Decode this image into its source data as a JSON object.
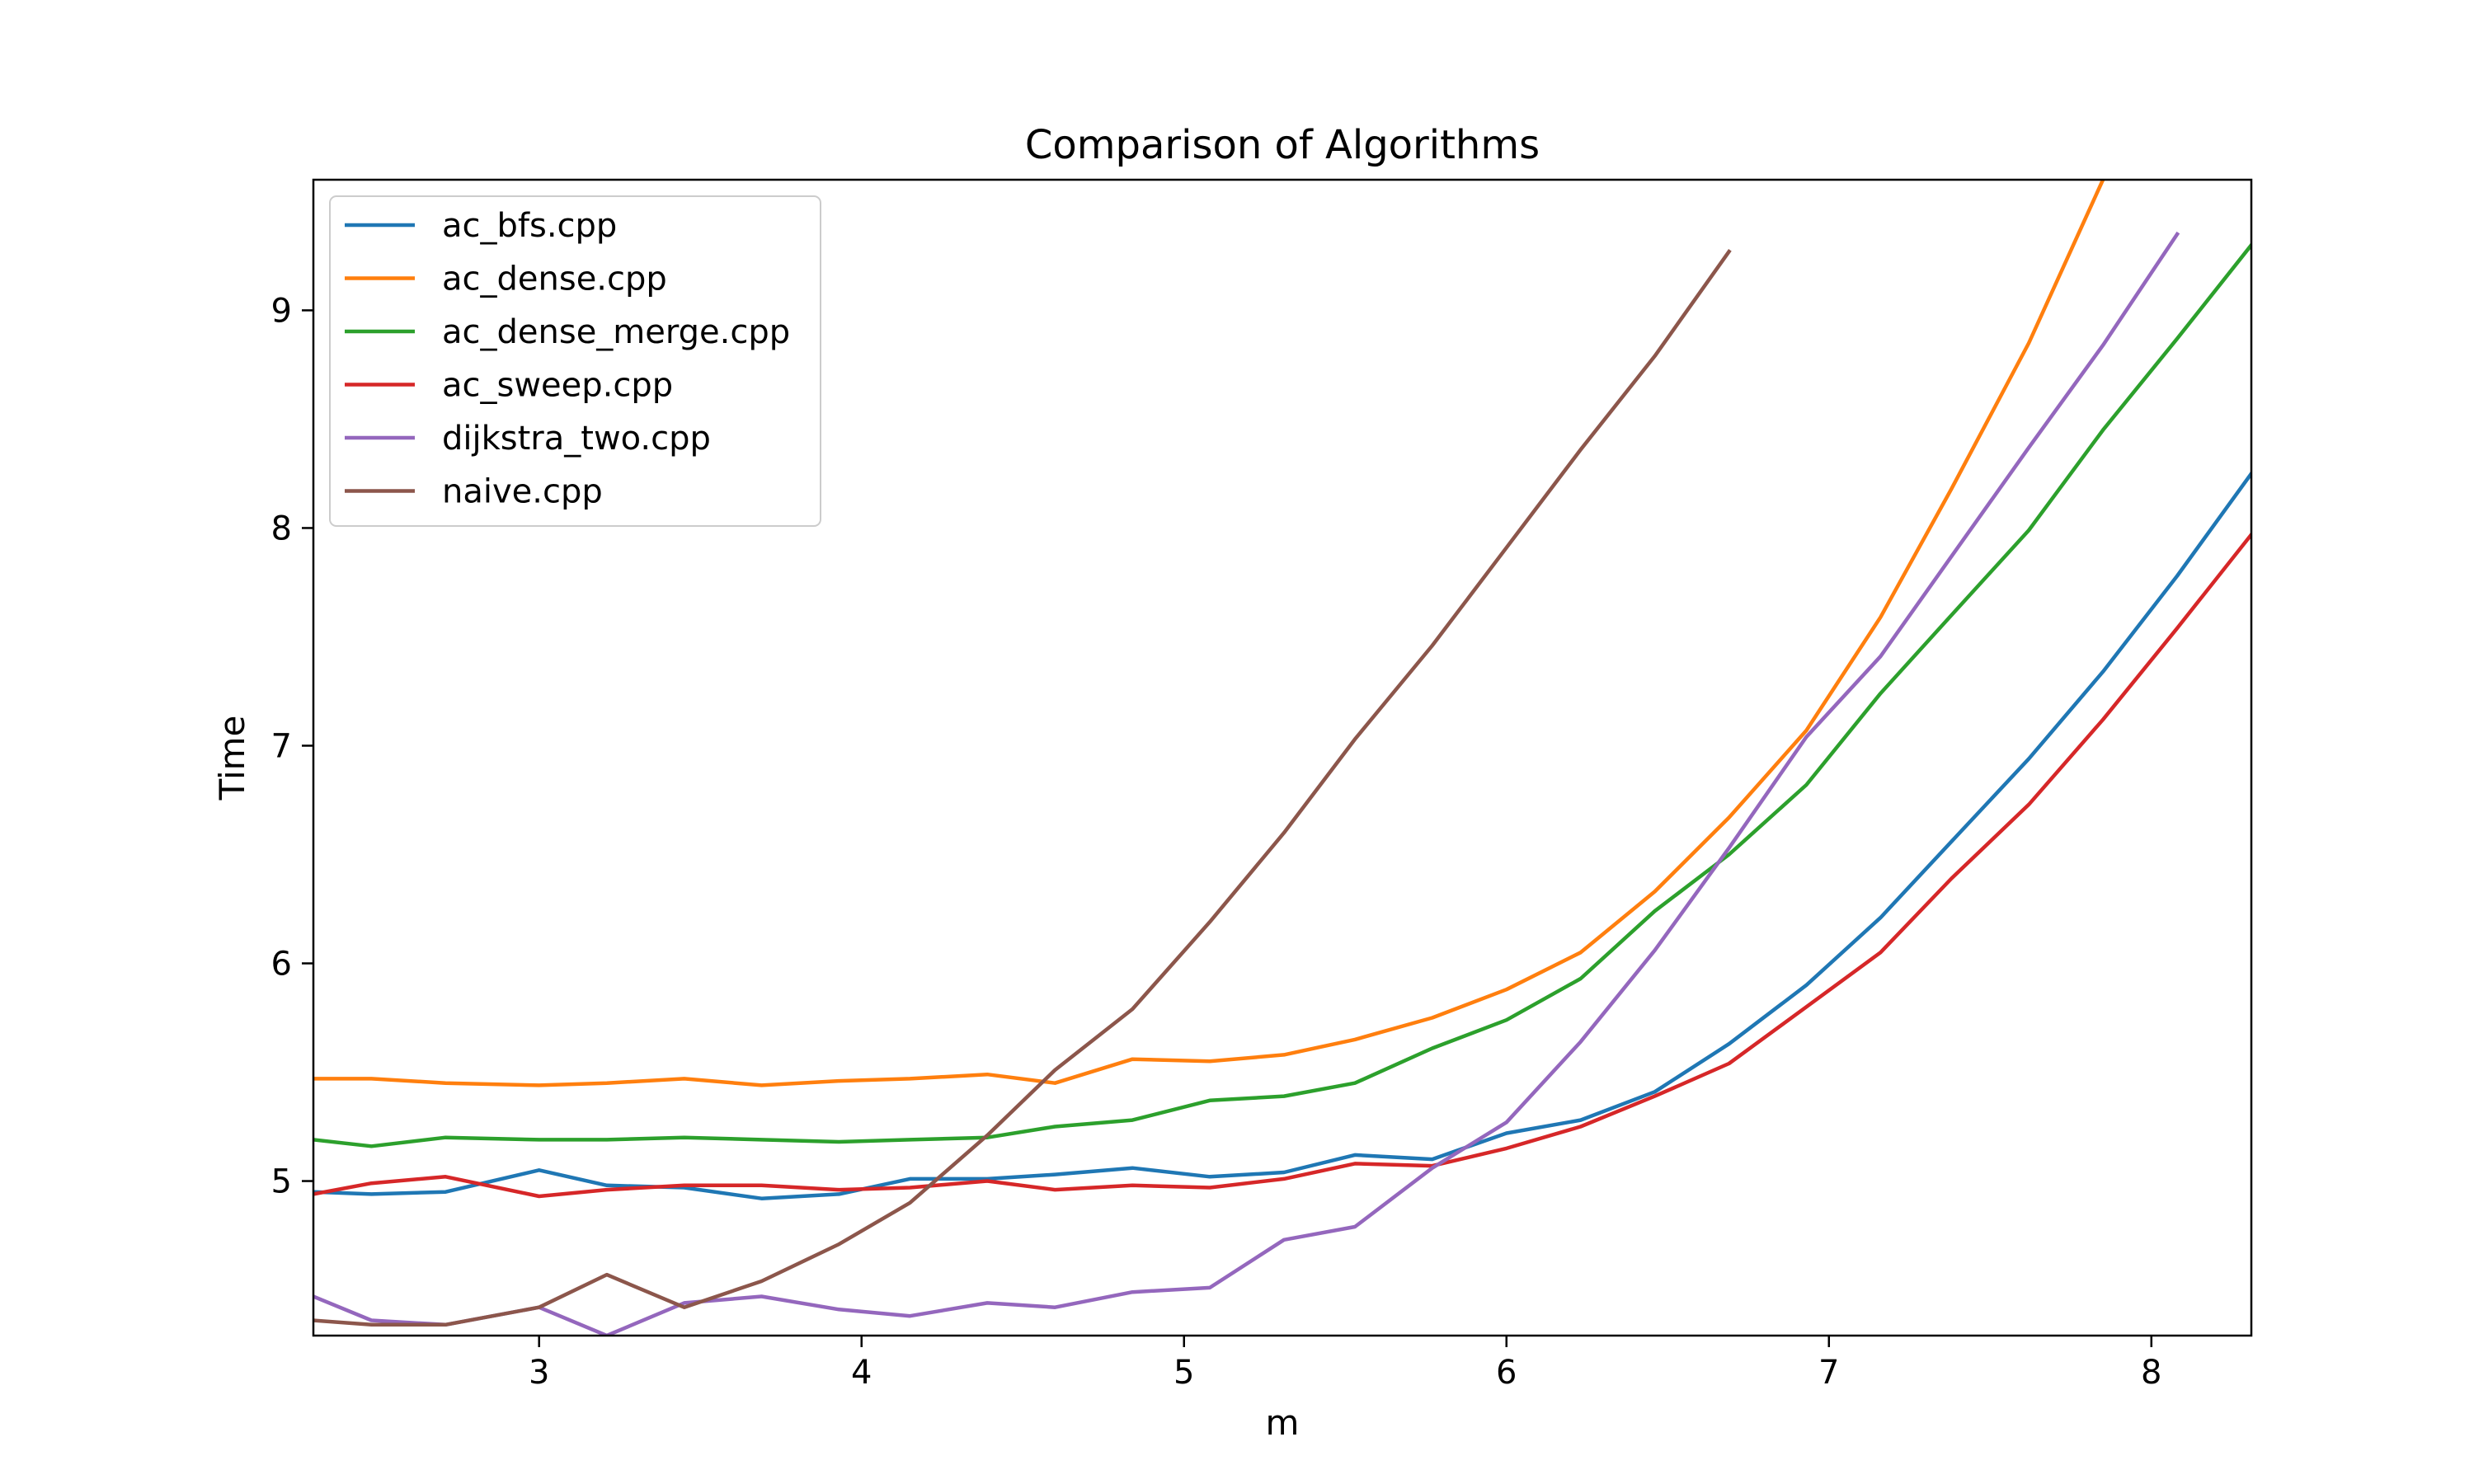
{
  "chart_data": {
    "type": "line",
    "title": "Comparison of Algorithms",
    "xlabel": "m",
    "ylabel": "Time",
    "xlim": [
      2.3,
      8.31
    ],
    "ylim": [
      4.29,
      9.6
    ],
    "xticks": [
      3,
      4,
      5,
      6,
      7,
      8
    ],
    "yticks": [
      5,
      6,
      7,
      8,
      9
    ],
    "x_tick_labels": [
      "3",
      "4",
      "5",
      "6",
      "7",
      "8"
    ],
    "y_tick_labels": [
      "5",
      "6",
      "7",
      "8",
      "9"
    ],
    "grid": false,
    "legend_position": "upper left",
    "series": [
      {
        "name": "ac_bfs.cpp",
        "color": "#1f77b4",
        "x": [
          2.3,
          2.48,
          2.71,
          3.0,
          3.21,
          3.45,
          3.69,
          3.93,
          4.15,
          4.39,
          4.6,
          4.84,
          5.08,
          5.31,
          5.53,
          5.77,
          6.0,
          6.23,
          6.46,
          6.69,
          6.93,
          7.16,
          7.38,
          7.62,
          7.85,
          8.08,
          8.31
        ],
        "y": [
          4.95,
          4.94,
          4.95,
          5.05,
          4.98,
          4.97,
          4.92,
          4.94,
          5.01,
          5.01,
          5.03,
          5.06,
          5.02,
          5.04,
          5.12,
          5.1,
          5.22,
          5.28,
          5.41,
          5.63,
          5.9,
          6.21,
          6.56,
          6.94,
          7.34,
          7.78,
          8.25
        ]
      },
      {
        "name": "ac_dense.cpp",
        "color": "#ff7f0e",
        "x": [
          2.3,
          2.48,
          2.71,
          3.0,
          3.21,
          3.45,
          3.69,
          3.93,
          4.15,
          4.39,
          4.6,
          4.84,
          5.08,
          5.31,
          5.53,
          5.77,
          6.0,
          6.23,
          6.46,
          6.69,
          6.93,
          7.16,
          7.38,
          7.62,
          7.85
        ],
        "y": [
          5.47,
          5.47,
          5.45,
          5.44,
          5.45,
          5.47,
          5.44,
          5.46,
          5.47,
          5.49,
          5.45,
          5.56,
          5.55,
          5.58,
          5.65,
          5.75,
          5.88,
          6.05,
          6.33,
          6.67,
          7.07,
          7.59,
          8.18,
          8.85,
          9.6
        ]
      },
      {
        "name": "ac_dense_merge.cpp",
        "color": "#2ca02c",
        "x": [
          2.3,
          2.48,
          2.71,
          3.0,
          3.21,
          3.45,
          3.69,
          3.93,
          4.15,
          4.39,
          4.6,
          4.84,
          5.08,
          5.31,
          5.53,
          5.77,
          6.0,
          6.23,
          6.46,
          6.69,
          6.93,
          7.16,
          7.38,
          7.62,
          7.85,
          8.08,
          8.31
        ],
        "y": [
          5.19,
          5.16,
          5.2,
          5.19,
          5.19,
          5.2,
          5.19,
          5.18,
          5.19,
          5.2,
          5.25,
          5.28,
          5.37,
          5.39,
          5.45,
          5.61,
          5.74,
          5.93,
          6.24,
          6.5,
          6.82,
          7.24,
          7.6,
          7.99,
          8.45,
          8.87,
          9.3
        ]
      },
      {
        "name": "ac_sweep.cpp",
        "color": "#d62728",
        "x": [
          2.3,
          2.48,
          2.71,
          3.0,
          3.21,
          3.45,
          3.69,
          3.93,
          4.15,
          4.39,
          4.6,
          4.84,
          5.08,
          5.31,
          5.53,
          5.77,
          6.0,
          6.23,
          6.46,
          6.69,
          6.93,
          7.16,
          7.38,
          7.62,
          7.85,
          8.08,
          8.31
        ],
        "y": [
          4.94,
          4.99,
          5.02,
          4.93,
          4.96,
          4.98,
          4.98,
          4.96,
          4.97,
          5.0,
          4.96,
          4.98,
          4.97,
          5.01,
          5.08,
          5.07,
          5.15,
          5.25,
          5.39,
          5.54,
          5.8,
          6.05,
          6.39,
          6.73,
          7.12,
          7.54,
          7.97
        ]
      },
      {
        "name": "dijkstra_two.cpp",
        "color": "#9467bd",
        "x": [
          2.3,
          2.48,
          2.71,
          3.0,
          3.21,
          3.45,
          3.69,
          3.93,
          4.15,
          4.39,
          4.6,
          4.84,
          5.08,
          5.31,
          5.53,
          5.77,
          6.0,
          6.23,
          6.46,
          6.69,
          6.93,
          7.16,
          7.38,
          7.62,
          7.85,
          8.08
        ],
        "y": [
          4.47,
          4.36,
          4.34,
          4.42,
          4.29,
          4.44,
          4.47,
          4.41,
          4.38,
          4.44,
          4.42,
          4.49,
          4.51,
          4.73,
          4.79,
          5.06,
          5.27,
          5.64,
          6.06,
          6.53,
          7.04,
          7.41,
          7.87,
          8.37,
          8.84,
          9.35
        ]
      },
      {
        "name": "naive.cpp",
        "color": "#8c564b",
        "x": [
          2.3,
          2.48,
          2.71,
          3.0,
          3.21,
          3.45,
          3.69,
          3.93,
          4.15,
          4.39,
          4.6,
          4.84,
          5.08,
          5.31,
          5.53,
          5.77,
          6.0,
          6.23,
          6.46,
          6.69
        ],
        "y": [
          4.36,
          4.34,
          4.34,
          4.42,
          4.57,
          4.42,
          4.54,
          4.71,
          4.9,
          5.21,
          5.51,
          5.79,
          6.19,
          6.6,
          7.03,
          7.46,
          7.91,
          8.36,
          8.79,
          9.27
        ]
      }
    ]
  }
}
